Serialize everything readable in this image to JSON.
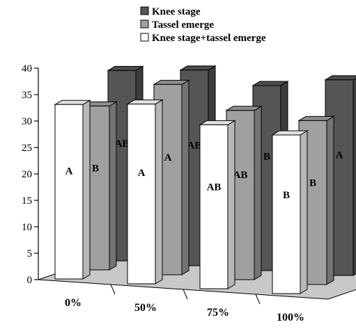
{
  "chart_data": {
    "type": "bar",
    "subtype": "3d-grouped-bar",
    "title": "",
    "xlabel": "",
    "ylabel": "",
    "categories": [
      "0%",
      "50%",
      "75%",
      "100%"
    ],
    "ylim": [
      0,
      40
    ],
    "yticks": [
      "0",
      "5",
      "10",
      "15",
      "20",
      "25",
      "30",
      "35",
      "40"
    ],
    "grid": false,
    "legend_position": "top",
    "series": [
      {
        "name": "Knee stage",
        "color": "#555555",
        "values": [
          36,
          37,
          35,
          37
        ],
        "labels": [
          "AB",
          "AB",
          "B",
          "A"
        ]
      },
      {
        "name": "Tassel emerge",
        "color": "#a0a0a0",
        "values": [
          31,
          36,
          32,
          31
        ],
        "labels": [
          "B",
          "A",
          "AB",
          "B"
        ]
      },
      {
        "name": "Knee stage+tassel emerge",
        "color": "#ffffff",
        "values": [
          33,
          34,
          31,
          30
        ],
        "labels": [
          "A",
          "A",
          "AB",
          "B"
        ]
      }
    ]
  }
}
